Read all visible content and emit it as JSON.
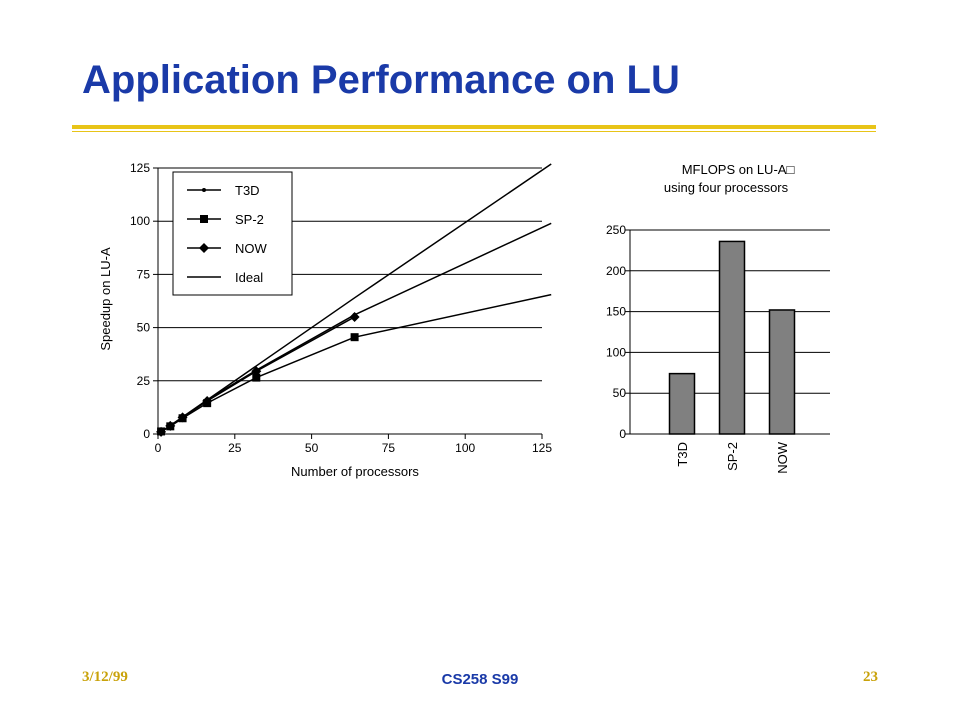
{
  "slide": {
    "title": "Application Performance on LU",
    "date": "3/12/99",
    "course": "CS258 S99",
    "page_number": "23",
    "accent_color": "#e8c418",
    "title_color": "#1a3aa8"
  },
  "chart_data": [
    {
      "type": "line",
      "xlabel": "Number of processors",
      "ylabel": "Speedup on LU-A",
      "xlim": [
        0,
        125
      ],
      "ylim": [
        0,
        125
      ],
      "x_ticks": [
        "0",
        "25",
        "50",
        "75",
        "100",
        "125"
      ],
      "y_ticks": [
        "0",
        "25",
        "50",
        "75",
        "100",
        "125"
      ],
      "grid": "horizontal",
      "legend": "top-left",
      "series": [
        {
          "name": "T3D",
          "marker": "small-dot",
          "x": [
            1,
            4,
            8,
            16,
            32,
            64,
            128
          ],
          "y": [
            1,
            3.8,
            7.5,
            16,
            30,
            56,
            99
          ]
        },
        {
          "name": "SP-2",
          "marker": "square",
          "x": [
            1,
            4,
            8,
            16,
            32,
            64,
            128
          ],
          "y": [
            1.2,
            3.6,
            7.4,
            14.5,
            26.5,
            45.5,
            65.5
          ]
        },
        {
          "name": "NOW",
          "marker": "diamond",
          "x": [
            1,
            4,
            8,
            16,
            32,
            64
          ],
          "y": [
            1,
            3.8,
            7.8,
            15.5,
            29.5,
            55
          ]
        },
        {
          "name": "Ideal",
          "marker": "none",
          "x": [
            0,
            64,
            128
          ],
          "y": [
            0,
            64,
            128
          ]
        }
      ]
    },
    {
      "type": "bar",
      "title": "MFLOPS on LU-A□",
      "subtitle": "using four processors",
      "categories": [
        "T3D",
        "SP-2",
        "NOW"
      ],
      "values": [
        74,
        236,
        152
      ],
      "ylim": [
        0,
        250
      ],
      "y_ticks": [
        "0",
        "50",
        "100",
        "150",
        "200",
        "250"
      ],
      "grid": "horizontal",
      "bar_color": "#808080"
    }
  ]
}
